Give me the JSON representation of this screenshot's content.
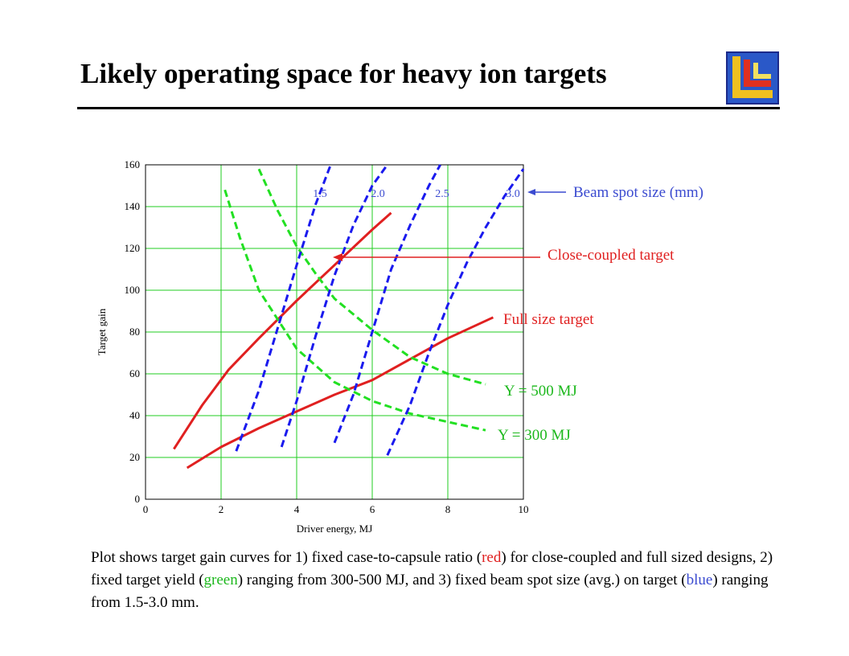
{
  "title": "Likely operating space for heavy ion targets",
  "colors": {
    "red": "#e02020",
    "green": "#22e022",
    "blue": "#1a1aee",
    "grid": "#22cc22",
    "label_blue": "#3b4bd0",
    "label_red": "#e02020",
    "label_green": "#1db81d"
  },
  "chart_data": {
    "type": "line",
    "xlabel": "Driver energy, MJ",
    "ylabel": "Target gain",
    "xlim": [
      0,
      10
    ],
    "ylim": [
      0,
      160
    ],
    "xticks": [
      "0",
      "2",
      "4",
      "6",
      "8",
      "10"
    ],
    "yticks": [
      "0",
      "20",
      "40",
      "60",
      "80",
      "100",
      "120",
      "140",
      "160"
    ],
    "grid": true,
    "series": [
      {
        "name": "Close-coupled target",
        "color": "red",
        "style": "solid",
        "x": [
          0.75,
          1.5,
          2.2,
          3.0,
          4.0,
          5.0,
          6.0,
          6.5
        ],
        "y": [
          24,
          45,
          62,
          77,
          95,
          112,
          129,
          137
        ]
      },
      {
        "name": "Full size target",
        "color": "red",
        "style": "solid",
        "x": [
          1.1,
          2.0,
          3.0,
          4.0,
          5.0,
          6.0,
          7.0,
          8.0,
          9.2
        ],
        "y": [
          15,
          25,
          34,
          42,
          50,
          57,
          67,
          77,
          87
        ]
      },
      {
        "name": "Y = 500 MJ",
        "color": "green",
        "style": "dashed",
        "x": [
          3.0,
          3.5,
          4.0,
          4.5,
          5.0,
          6.0,
          7.0,
          8.0,
          9.0
        ],
        "y": [
          158,
          138,
          121,
          108,
          96,
          81,
          68,
          60,
          55
        ]
      },
      {
        "name": "Y = 300 MJ",
        "color": "green",
        "style": "dashed",
        "x": [
          2.1,
          2.5,
          3.0,
          3.5,
          4.0,
          5.0,
          6.0,
          7.0,
          8.0,
          9.0
        ],
        "y": [
          148,
          125,
          100,
          86,
          72,
          56,
          47,
          41,
          37,
          33
        ]
      },
      {
        "name": "1.5",
        "color": "blue",
        "style": "dashed",
        "x": [
          2.4,
          3.0,
          3.5,
          4.0,
          4.5,
          4.9
        ],
        "y": [
          23,
          52,
          82,
          112,
          141,
          160
        ]
      },
      {
        "name": "2.0",
        "color": "blue",
        "style": "dashed",
        "x": [
          3.6,
          4.0,
          4.5,
          5.0,
          5.5,
          6.0,
          6.4
        ],
        "y": [
          25,
          47,
          78,
          107,
          131,
          150,
          160
        ]
      },
      {
        "name": "2.5",
        "color": "blue",
        "style": "dashed",
        "x": [
          5.0,
          5.5,
          6.0,
          6.5,
          7.0,
          7.5,
          7.8
        ],
        "y": [
          27,
          50,
          80,
          110,
          131,
          150,
          160
        ]
      },
      {
        "name": "3.0",
        "color": "blue",
        "style": "dashed",
        "x": [
          6.4,
          7.0,
          7.5,
          8.0,
          8.5,
          9.0,
          9.5,
          10.0
        ],
        "y": [
          21,
          45,
          70,
          93,
          113,
          130,
          145,
          158
        ]
      }
    ],
    "annotations": {
      "beam_spot": "Beam spot size (mm)",
      "close_coupled": "Close-coupled target",
      "full_size": "Full size target",
      "y500": "Y = 500 MJ",
      "y300": "Y = 300 MJ",
      "spot_labels": [
        "1.5",
        "2.0",
        "2.5",
        "3.0"
      ]
    }
  },
  "caption": {
    "p1": "Plot shows target gain curves for 1) fixed case-to-capsule ratio (",
    "red": "red",
    "p2": ") for close-coupled and full sized designs, 2) fixed target yield (",
    "green": "green",
    "p3": ") ranging from 300-500 MJ, and 3) fixed beam spot size (avg.) on target (",
    "blue": "blue",
    "p4": ") ranging from 1.5-3.0 mm."
  }
}
